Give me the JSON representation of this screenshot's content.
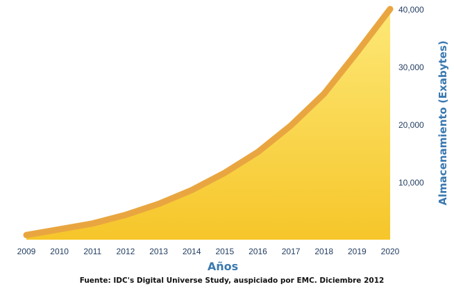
{
  "chart_data": {
    "type": "area",
    "x": [
      "2009",
      "2010",
      "2011",
      "2012",
      "2013",
      "2014",
      "2015",
      "2016",
      "2017",
      "2018",
      "2019",
      "2020"
    ],
    "values": [
      800,
      1800,
      2800,
      4300,
      6200,
      8600,
      11600,
      15200,
      19800,
      25300,
      32500,
      40000
    ],
    "xlabel": "Años",
    "ylabel": "Almacenamiento (Exabytes)",
    "ylim": [
      0,
      40000
    ],
    "yticks": [
      10000,
      20000,
      30000,
      40000
    ],
    "ytick_labels": [
      "10,000",
      "20,000",
      "30,000",
      "40,000"
    ],
    "source": "Fuente: IDC's Digital Universe Study, auspiciado por EMC. Diciembre 2012",
    "grid": false,
    "colors": {
      "fill_top": "#fbe46a",
      "fill_bottom": "#f7c92b",
      "edge": "#e9a640",
      "text": "#1f3a5f",
      "label": "#3a78b0"
    }
  }
}
